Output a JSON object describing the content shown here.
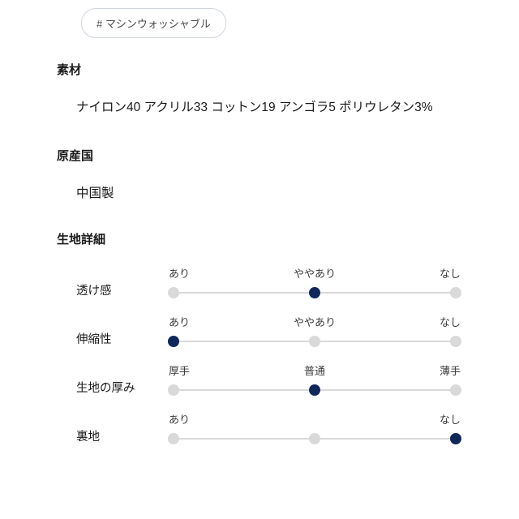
{
  "tag": {
    "label": "#  マシンウォッシャブル"
  },
  "sections": {
    "material": {
      "heading": "素材",
      "body": "ナイロン40 アクリル33 コットン19 アンゴラ5 ポリウレタン3%"
    },
    "origin": {
      "heading": "原産国",
      "body": "中国製"
    },
    "fabric": {
      "heading": "生地詳細"
    }
  },
  "fabric_details": [
    {
      "name": "透け感",
      "labels": [
        "あり",
        "ややあり",
        "なし"
      ],
      "active": 1
    },
    {
      "name": "伸縮性",
      "labels": [
        "あり",
        "ややあり",
        "なし"
      ],
      "active": 0
    },
    {
      "name": "生地の厚み",
      "labels": [
        "厚手",
        "普通",
        "薄手"
      ],
      "active": 1
    },
    {
      "name": "裏地",
      "labels": [
        "あり",
        "",
        "なし"
      ],
      "active": 2
    }
  ],
  "colors": {
    "dot_inactive": "#d9d9d9",
    "dot_active": "#10275a",
    "track": "#d9d9d9",
    "tag_border": "#d0d5dd"
  }
}
